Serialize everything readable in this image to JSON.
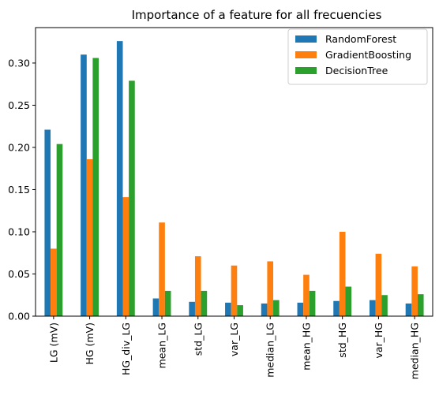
{
  "chart_data": {
    "type": "bar",
    "title": "Importance of a feature for all frecuencies",
    "xlabel": "",
    "ylabel": "",
    "categories": [
      "LG (mV)",
      "HG (mV)",
      "HG_div_LG",
      "mean_LG",
      "std_LG",
      "var_LG",
      "median_LG",
      "mean_HG",
      "std_HG",
      "var_HG",
      "median_HG"
    ],
    "series": [
      {
        "name": "RandomForest",
        "color": "#1f77b4",
        "values": [
          0.221,
          0.31,
          0.326,
          0.021,
          0.017,
          0.016,
          0.015,
          0.016,
          0.018,
          0.019,
          0.015
        ]
      },
      {
        "name": "GradientBoosting",
        "color": "#ff7f0e",
        "values": [
          0.08,
          0.186,
          0.141,
          0.111,
          0.071,
          0.06,
          0.065,
          0.049,
          0.1,
          0.074,
          0.059
        ]
      },
      {
        "name": "DecisionTree",
        "color": "#2ca02c",
        "values": [
          0.204,
          0.306,
          0.279,
          0.03,
          0.03,
          0.013,
          0.019,
          0.03,
          0.035,
          0.025,
          0.026
        ]
      }
    ],
    "ylim": [
      0,
      0.342
    ],
    "yticks": [
      0.0,
      0.05,
      0.1,
      0.15,
      0.2,
      0.25,
      0.3
    ],
    "ytick_labels": [
      "0.00",
      "0.05",
      "0.10",
      "0.15",
      "0.20",
      "0.25",
      "0.30"
    ],
    "grid": false,
    "legend_position": "top-right"
  }
}
